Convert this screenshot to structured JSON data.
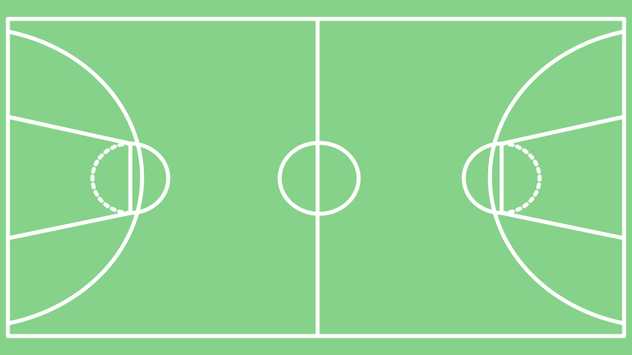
{
  "court": {
    "surface_color": "#86d28a",
    "line_color": "#ffffff"
  }
}
